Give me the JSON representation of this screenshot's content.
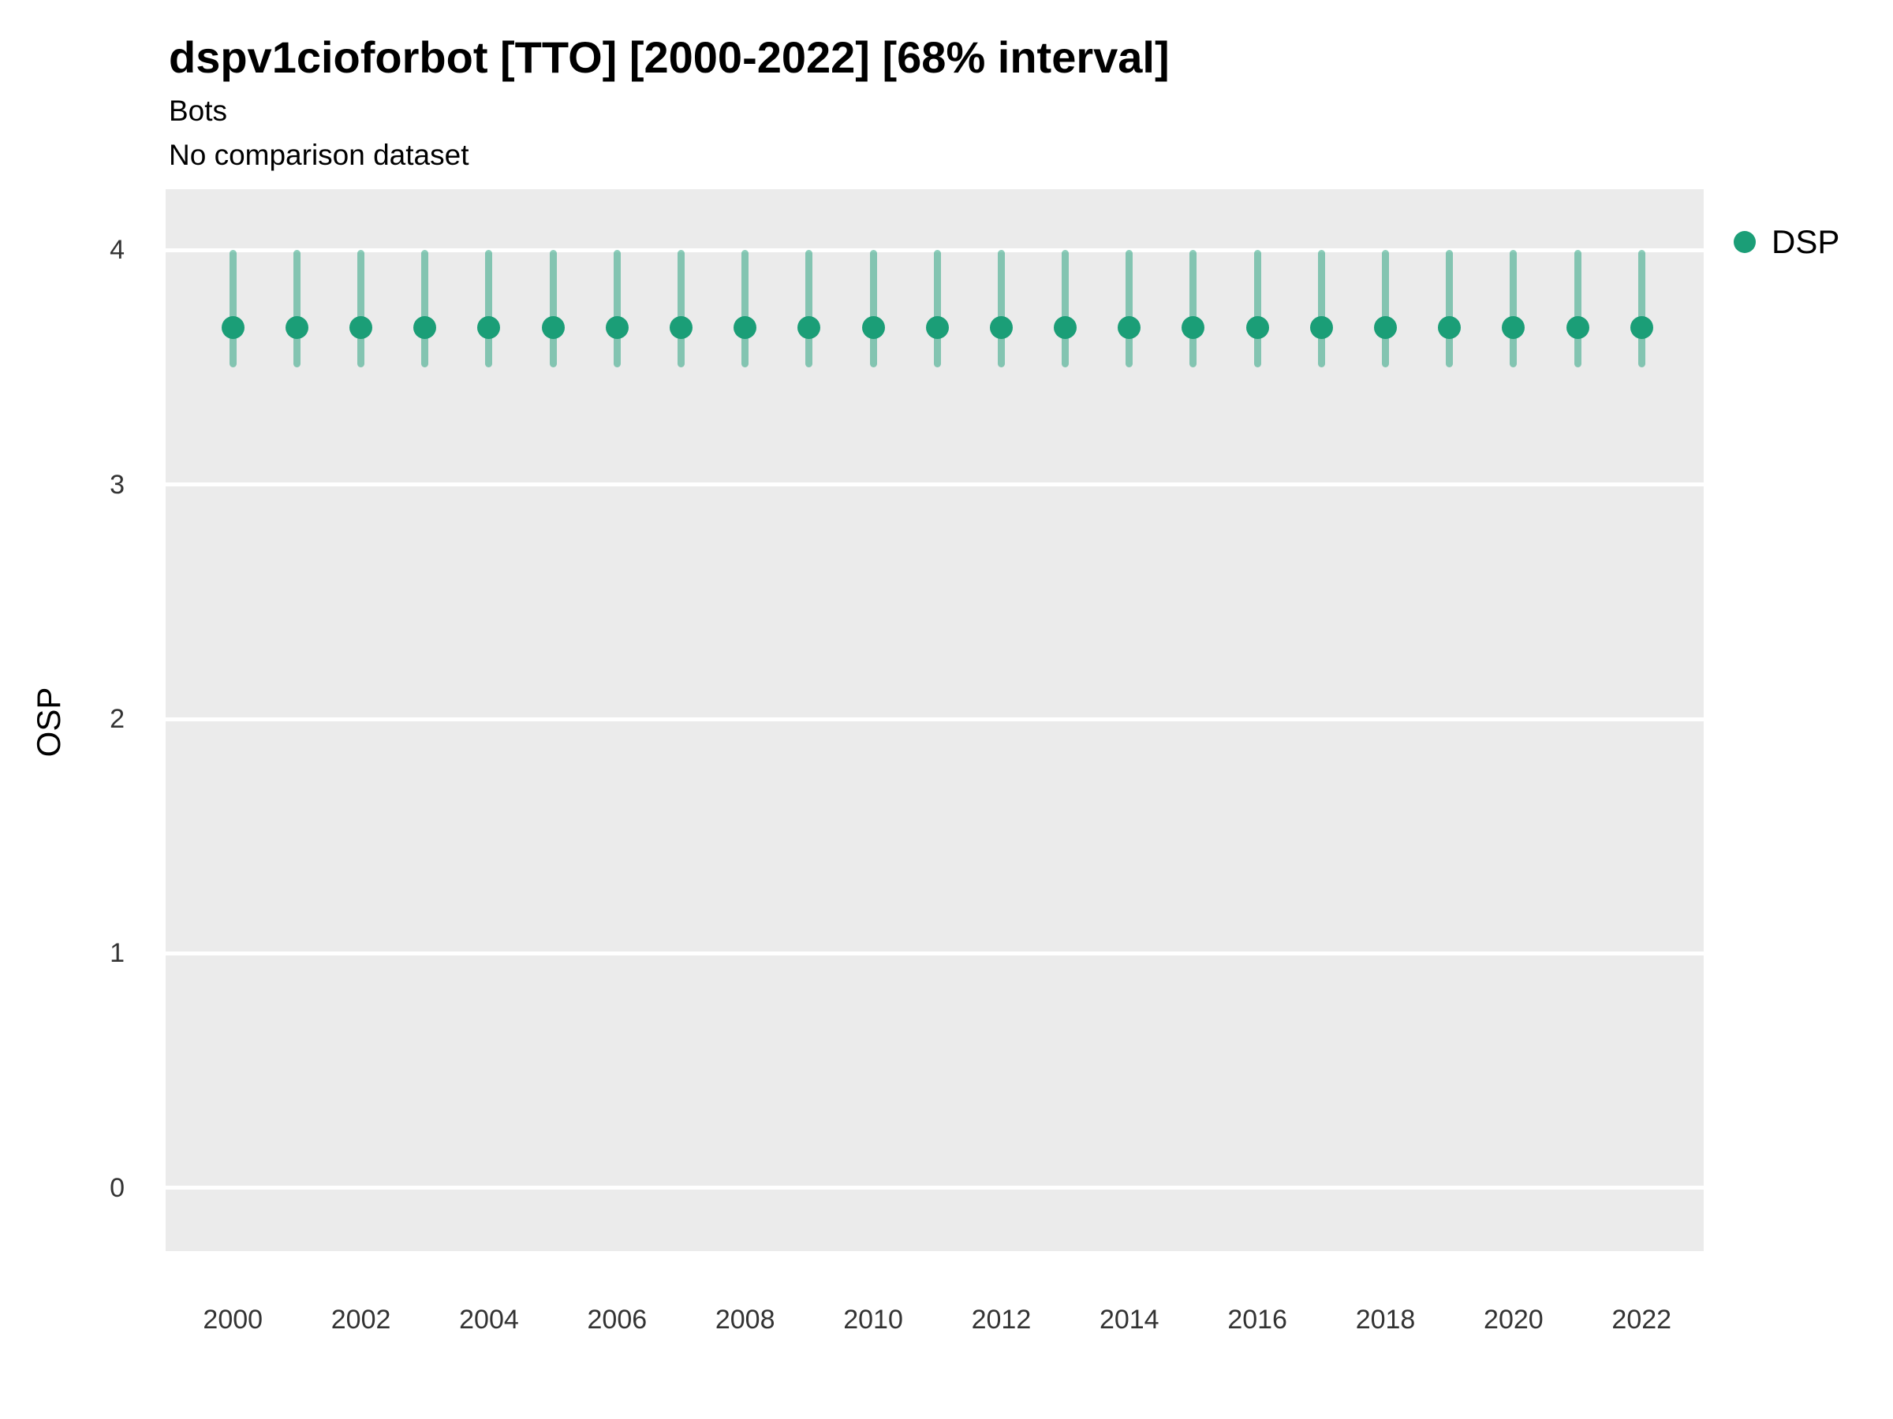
{
  "header": {
    "title": "dspv1cioforbot [TTO] [2000-2022] [68% interval]",
    "subtitle1": "Bots",
    "subtitle2": "No comparison dataset"
  },
  "legend": {
    "label": "DSP",
    "color": "#1b9e77"
  },
  "axes": {
    "ylabel": "OSP"
  },
  "chart_data": {
    "type": "pointrange",
    "title": "dspv1cioforbot [TTO] [2000-2022] [68% interval]",
    "subtitle": "Bots",
    "caption": "No comparison dataset",
    "xlabel": "",
    "ylabel": "OSP",
    "legend_position": "right",
    "grid": "major-horizontal-white-on-gray",
    "panel_bg": "#EBEBEB",
    "grid_color": "#FFFFFF",
    "point_color": "#1b9e77",
    "interval_label": "68% interval",
    "ylim": [
      -0.27,
      4.26
    ],
    "xlim": [
      1998.95,
      2022.97
    ],
    "yticks": [
      0,
      1,
      2,
      3,
      4
    ],
    "xticks": [
      2000,
      2002,
      2004,
      2006,
      2008,
      2010,
      2012,
      2014,
      2016,
      2018,
      2020,
      2022
    ],
    "x": [
      2000,
      2001,
      2002,
      2003,
      2004,
      2005,
      2006,
      2007,
      2008,
      2009,
      2010,
      2011,
      2012,
      2013,
      2014,
      2015,
      2016,
      2017,
      2018,
      2019,
      2020,
      2021,
      2022
    ],
    "series": [
      {
        "name": "DSP",
        "values": [
          3.67,
          3.67,
          3.67,
          3.67,
          3.67,
          3.67,
          3.67,
          3.67,
          3.67,
          3.67,
          3.67,
          3.67,
          3.67,
          3.67,
          3.67,
          3.67,
          3.67,
          3.67,
          3.67,
          3.67,
          3.67,
          3.67,
          3.67
        ],
        "lower": [
          3.5,
          3.5,
          3.5,
          3.5,
          3.5,
          3.5,
          3.5,
          3.5,
          3.5,
          3.5,
          3.5,
          3.5,
          3.5,
          3.5,
          3.5,
          3.5,
          3.5,
          3.5,
          3.5,
          3.5,
          3.5,
          3.5,
          3.5
        ],
        "upper": [
          4.0,
          4.0,
          4.0,
          4.0,
          4.0,
          4.0,
          4.0,
          4.0,
          4.0,
          4.0,
          4.0,
          4.0,
          4.0,
          4.0,
          4.0,
          4.0,
          4.0,
          4.0,
          4.0,
          4.0,
          4.0,
          4.0,
          4.0
        ]
      }
    ]
  }
}
